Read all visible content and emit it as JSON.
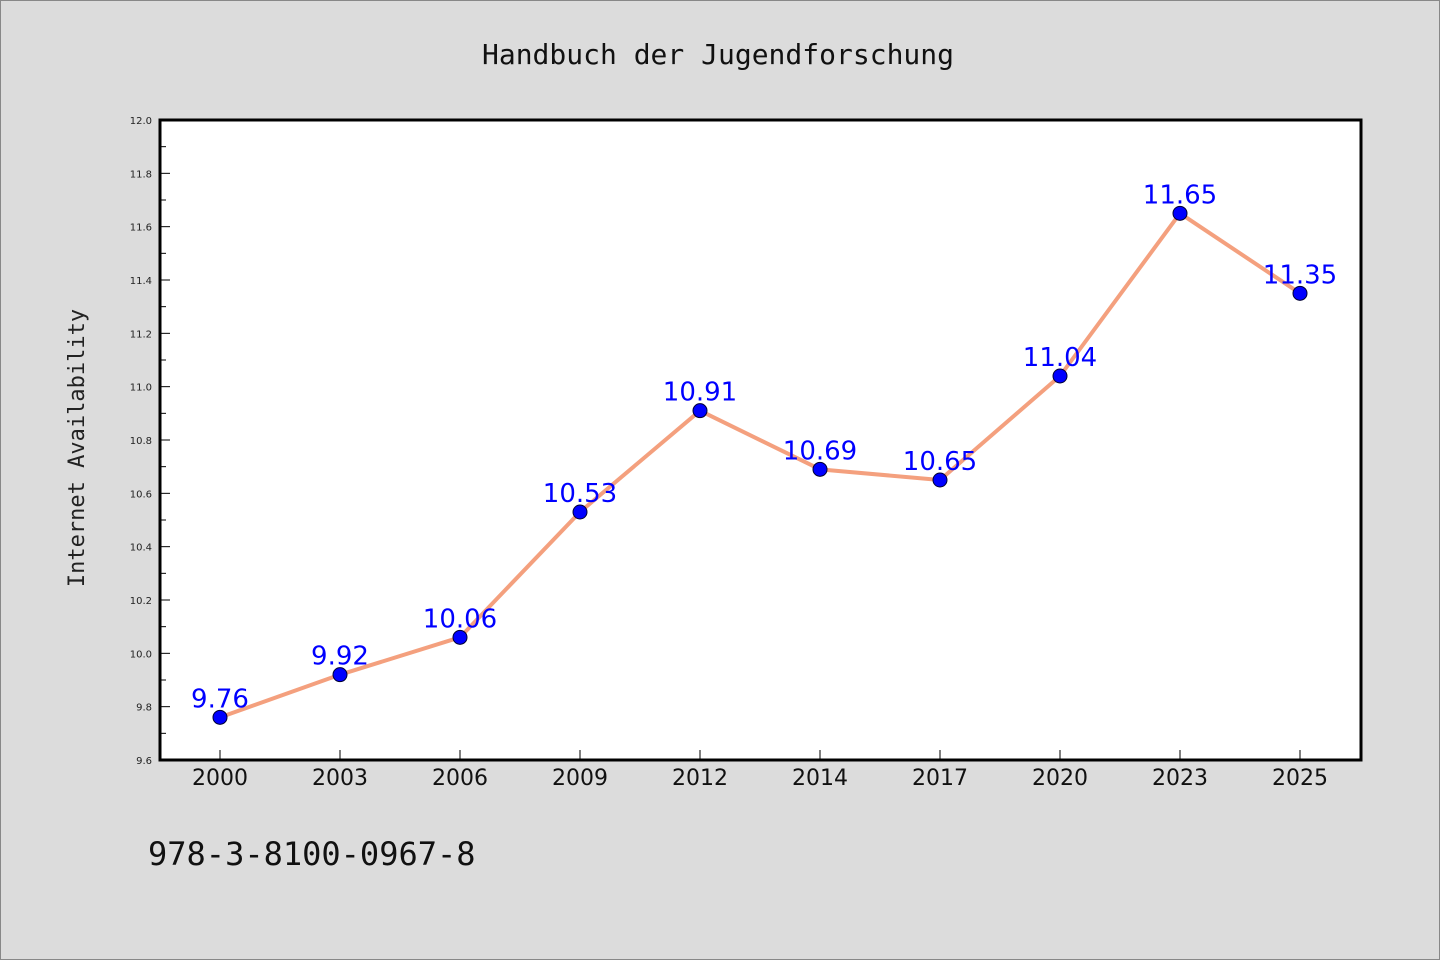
{
  "chart_data": {
    "type": "line",
    "title": "Handbuch der Jugendforschung",
    "ylabel": "Internet Availability",
    "xlabel": "",
    "categories": [
      "2000",
      "2003",
      "2006",
      "2009",
      "2012",
      "2014",
      "2017",
      "2020",
      "2023",
      "2025"
    ],
    "values": [
      9.76,
      9.92,
      10.06,
      10.53,
      10.91,
      10.69,
      10.65,
      11.04,
      11.65,
      11.35
    ],
    "data_labels": [
      "9.76",
      "9.92",
      "10.06",
      "10.53",
      "10.91",
      "10.69",
      "10.65",
      "11.04",
      "11.65",
      "11.35"
    ],
    "ylim": [
      9.6,
      12.0
    ],
    "yticks": [
      "9.6",
      "9.8",
      "10.0",
      "10.2",
      "10.4",
      "10.6",
      "10.8",
      "11.0",
      "11.2",
      "11.4",
      "11.6",
      "11.8",
      "12.0"
    ],
    "grid": false,
    "colors": {
      "line": "#f4a07e",
      "marker": "#0000ff",
      "label": "#0000ff",
      "background": "#dcdcdc",
      "plot_background": "#ffffff"
    }
  },
  "footer": {
    "isbn": "978-3-8100-0967-8"
  }
}
